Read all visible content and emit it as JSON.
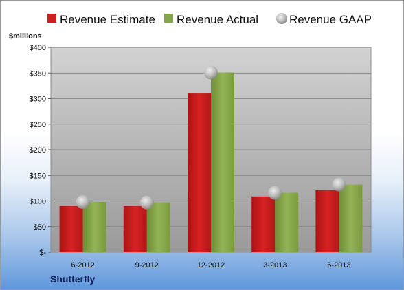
{
  "chart_data": {
    "type": "bar",
    "categories": [
      "6-2012",
      "9-2012",
      "12-2012",
      "3-2013",
      "6-2013"
    ],
    "series": [
      {
        "name": "Revenue Estimate",
        "values": [
          90,
          90,
          310,
          109,
          121
        ],
        "color": "#cc1f1f"
      },
      {
        "name": "Revenue Actual",
        "values": [
          98,
          97,
          351,
          116,
          132
        ],
        "color": "#86a54a"
      },
      {
        "name": "Revenue GAAP",
        "values": [
          98,
          97,
          351,
          116,
          132
        ],
        "color": "#c9c9c9",
        "marker": "circle"
      }
    ],
    "yticks": [
      {
        "value": 0,
        "label": "$-"
      },
      {
        "value": 50,
        "label": "$50"
      },
      {
        "value": 100,
        "label": "$100"
      },
      {
        "value": 150,
        "label": "$150"
      },
      {
        "value": 200,
        "label": "$200"
      },
      {
        "value": 250,
        "label": "$250"
      },
      {
        "value": 300,
        "label": "$300"
      },
      {
        "value": 350,
        "label": "$350"
      },
      {
        "value": 400,
        "label": "$400"
      }
    ],
    "ylim": [
      0,
      400
    ],
    "ylabel": "$millions",
    "xlabel": "",
    "title": "",
    "grid": true,
    "legend": "top"
  },
  "footer": {
    "company": "Shutterfly"
  }
}
